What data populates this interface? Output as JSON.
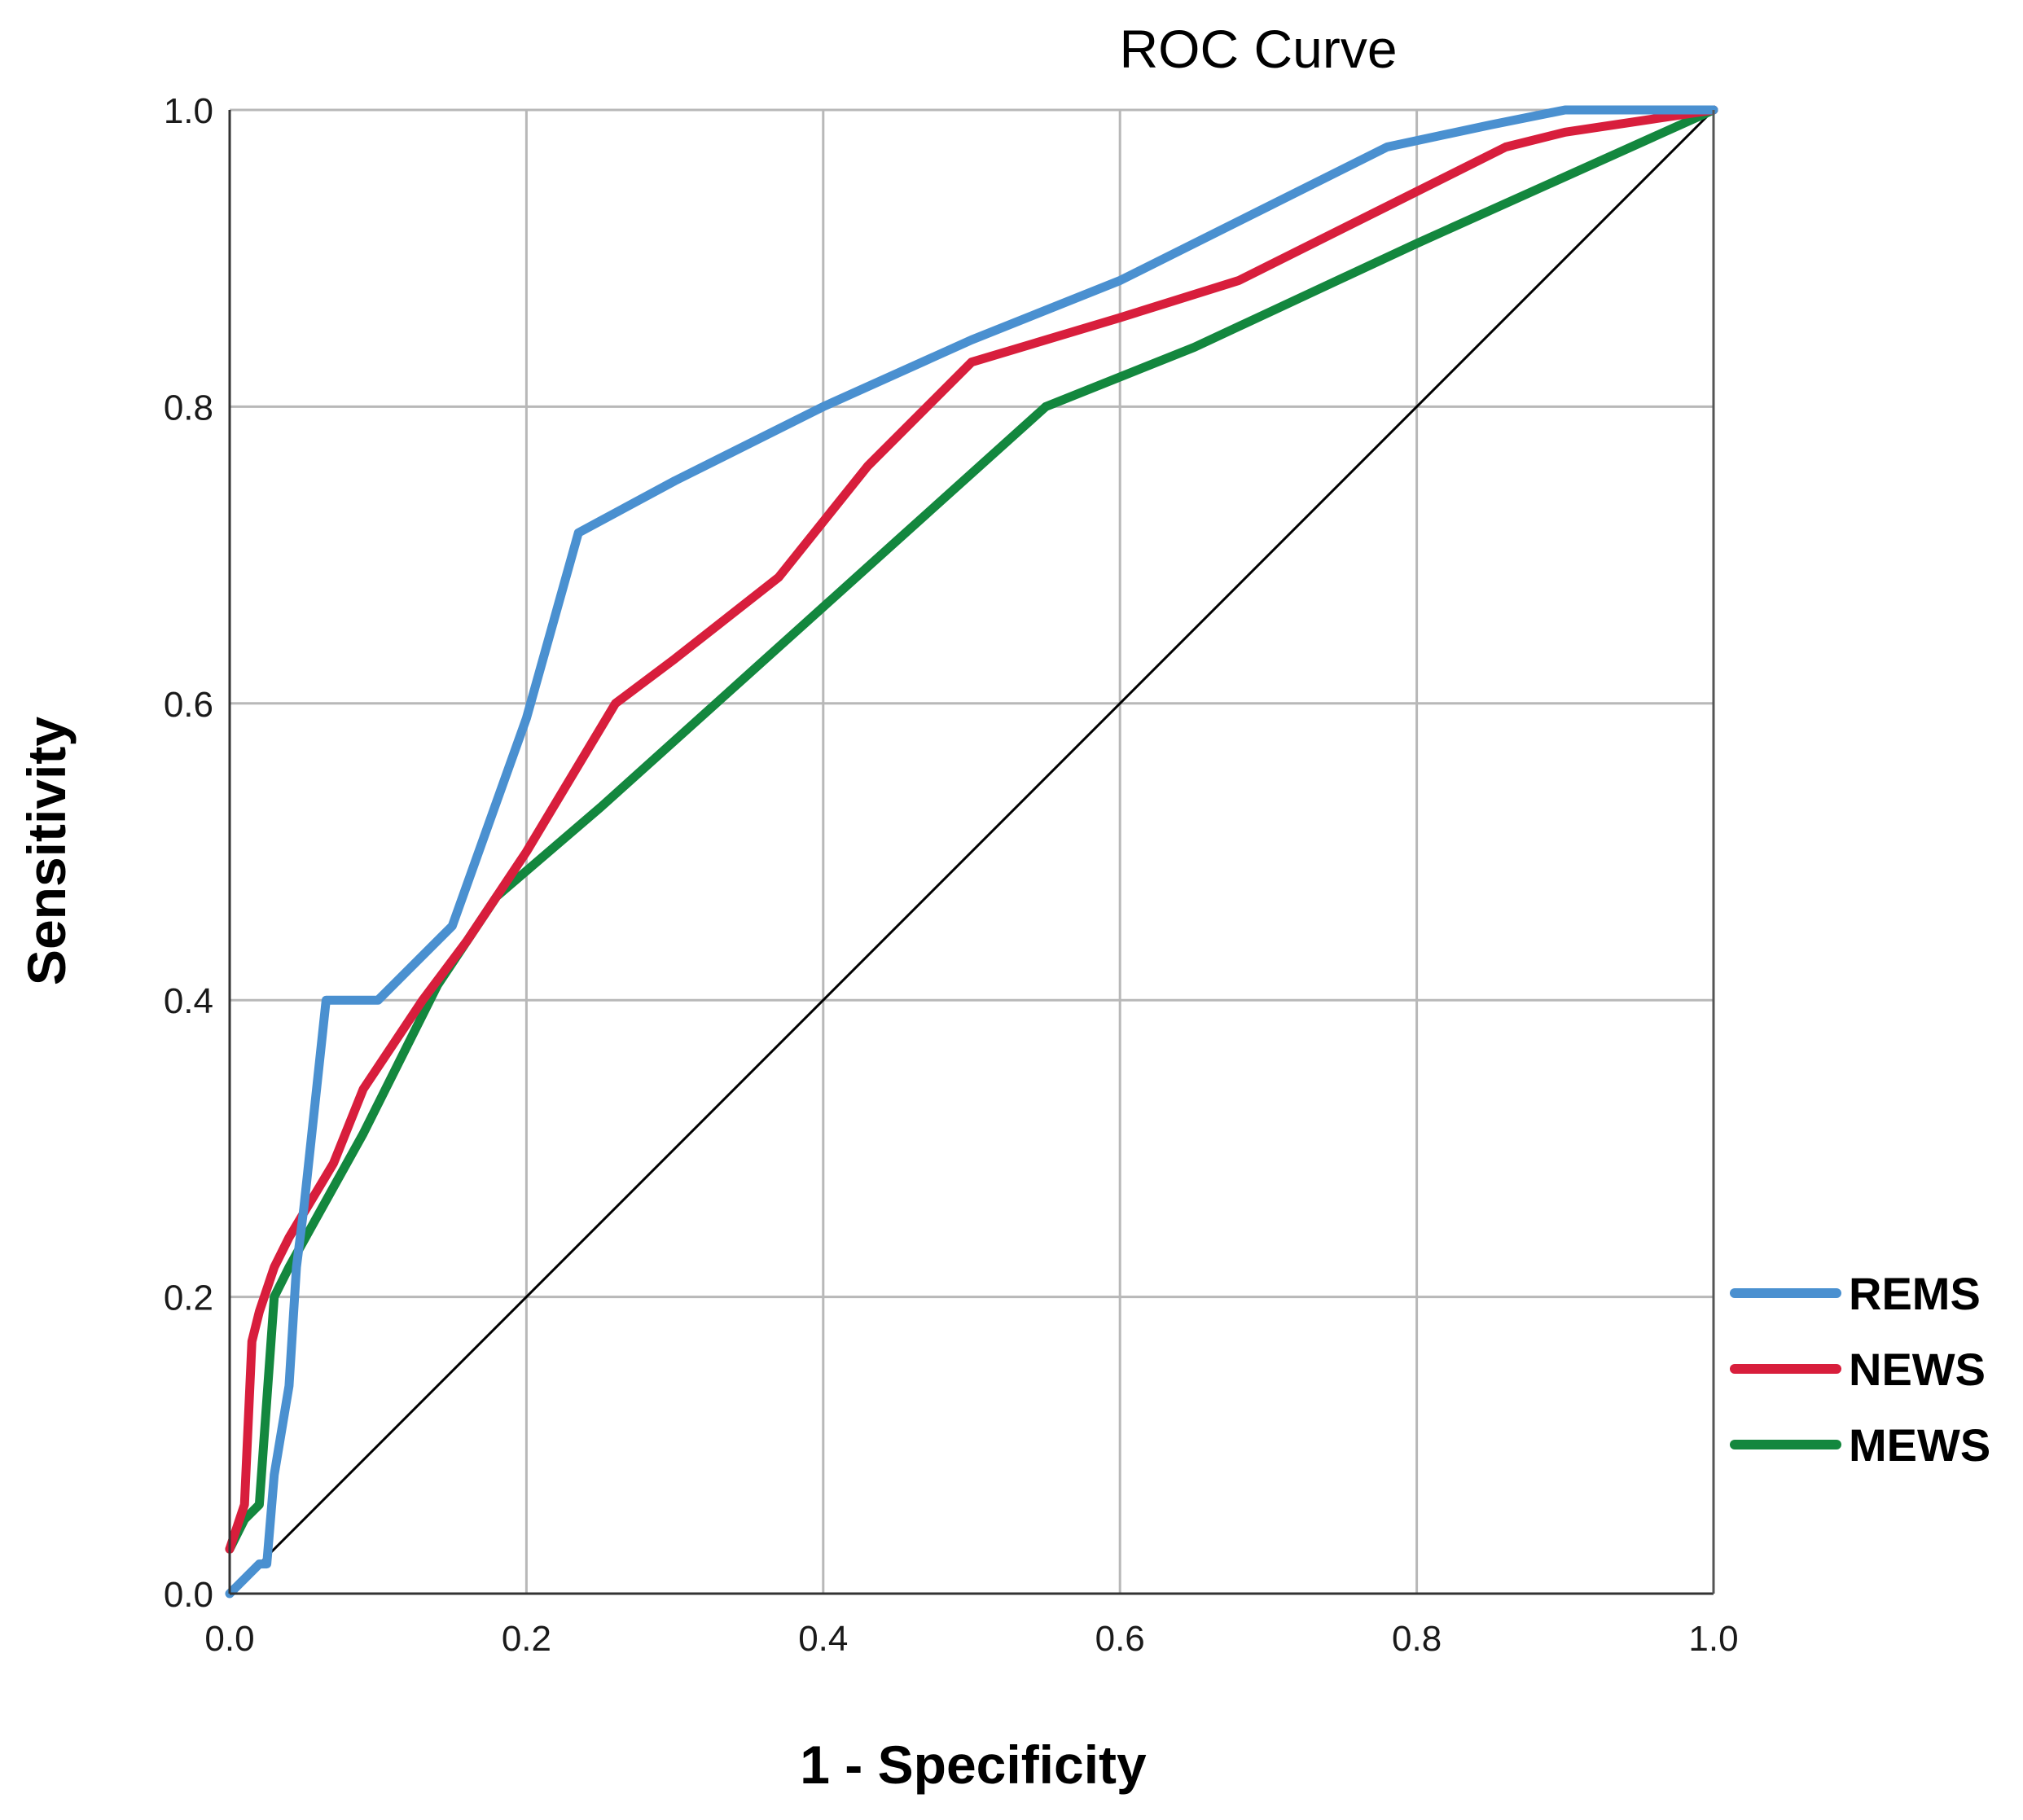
{
  "chart_data": {
    "type": "line",
    "title": "ROC Curve",
    "xlabel": "1 - Specificity",
    "ylabel": "Sensitivity",
    "xlim": [
      0,
      1
    ],
    "ylim": [
      0,
      1
    ],
    "grid": true,
    "xticks": [
      "0.0",
      "0.2",
      "0.4",
      "0.6",
      "0.8",
      "1.0"
    ],
    "yticks": [
      "0.0",
      "0.2",
      "0.4",
      "0.6",
      "0.8",
      "1.0"
    ],
    "legend_position": "right",
    "series": [
      {
        "name": "REMS",
        "color": "#4a90d0",
        "x": [
          0,
          0.02,
          0.025,
          0.03,
          0.04,
          0.045,
          0.05,
          0.065,
          0.1,
          0.15,
          0.2,
          0.235,
          0.3,
          0.4,
          0.5,
          0.6,
          0.7,
          0.78,
          0.85,
          0.9,
          1.0
        ],
        "y": [
          0,
          0.02,
          0.02,
          0.08,
          0.14,
          0.22,
          0.26,
          0.4,
          0.4,
          0.45,
          0.59,
          0.715,
          0.75,
          0.8,
          0.845,
          0.885,
          0.935,
          0.975,
          0.99,
          1.0,
          1.0
        ]
      },
      {
        "name": "NEWS",
        "color": "#d81e3c",
        "x": [
          0,
          0.01,
          0.015,
          0.02,
          0.03,
          0.04,
          0.07,
          0.09,
          0.13,
          0.16,
          0.2,
          0.26,
          0.3,
          0.37,
          0.43,
          0.5,
          0.6,
          0.68,
          0.78,
          0.86,
          0.9,
          1.0
        ],
        "y": [
          0.03,
          0.06,
          0.17,
          0.19,
          0.22,
          0.24,
          0.29,
          0.34,
          0.4,
          0.44,
          0.5,
          0.6,
          0.63,
          0.685,
          0.76,
          0.83,
          0.86,
          0.885,
          0.935,
          0.975,
          0.985,
          1.0
        ]
      },
      {
        "name": "MEWS",
        "color": "#13873e",
        "x": [
          0,
          0.01,
          0.02,
          0.03,
          0.04,
          0.09,
          0.14,
          0.18,
          0.25,
          0.35,
          0.45,
          0.55,
          0.65,
          0.8,
          1.0
        ],
        "y": [
          0.03,
          0.05,
          0.06,
          0.2,
          0.22,
          0.31,
          0.41,
          0.47,
          0.53,
          0.62,
          0.71,
          0.8,
          0.84,
          0.91,
          1.0
        ]
      }
    ],
    "reference_line": {
      "x": [
        0,
        1
      ],
      "y": [
        0,
        1
      ],
      "color": "#000000"
    }
  }
}
